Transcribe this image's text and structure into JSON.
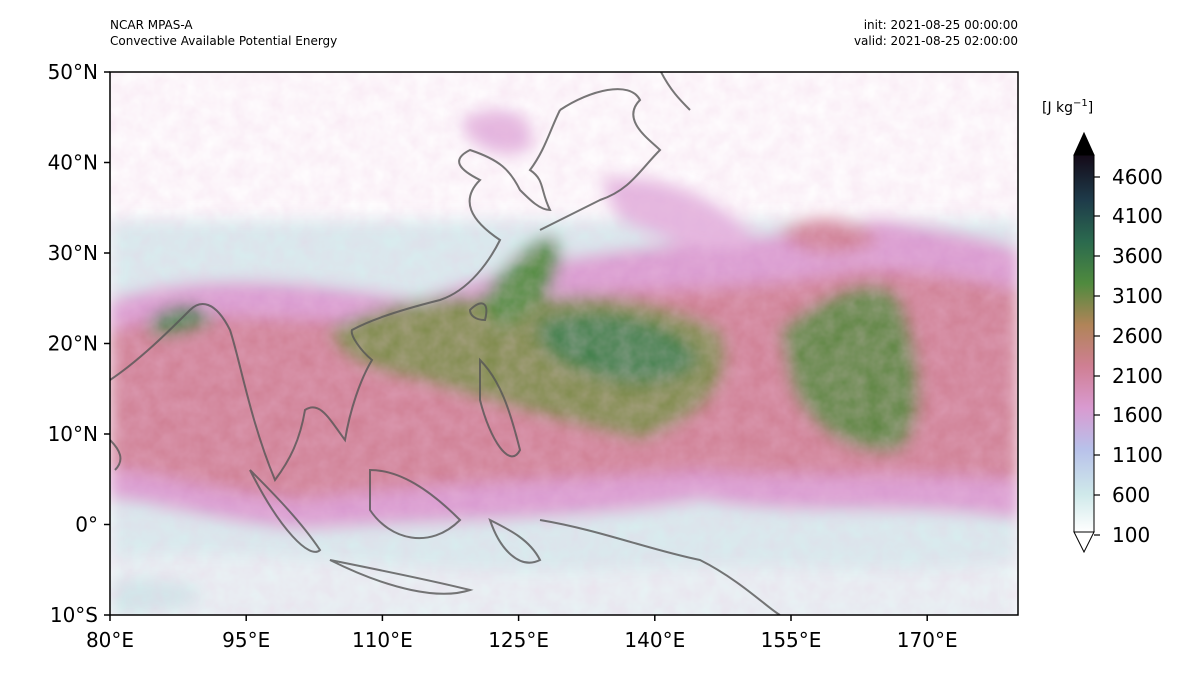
{
  "header": {
    "left_line1": "NCAR MPAS-A",
    "left_line2": "Convective Available Potential Energy",
    "right_line1": "init: 2021-08-25 00:00:00",
    "right_line2": "valid: 2021-08-25 02:00:00"
  },
  "map": {
    "projection": "plate-carree",
    "lon_range": [
      80,
      180
    ],
    "lat_range": [
      -10,
      50
    ],
    "lat_ticks": [
      "50°N",
      "40°N",
      "30°N",
      "20°N",
      "10°N",
      "0°",
      "10°S"
    ],
    "lon_ticks": [
      "80°E",
      "95°E",
      "110°E",
      "125°E",
      "140°E",
      "155°E",
      "170°E"
    ],
    "field": "Convective Available Potential Energy",
    "coastline_color": "#555555"
  },
  "colorbar": {
    "units_prefix": "[J kg",
    "units_exponent": "−1",
    "units_suffix": "]",
    "tick_labels": [
      "4600",
      "4100",
      "3600",
      "3100",
      "2600",
      "2100",
      "1600",
      "1100",
      "600",
      "100"
    ],
    "extend": "both",
    "colormap": "cubehelix-like",
    "colors": [
      "#ffffff",
      "#cfe9ea",
      "#b8c1ea",
      "#d99ad0",
      "#cf7f93",
      "#b08458",
      "#4f8a3e",
      "#2b6a4e",
      "#1e3b4a",
      "#140a18",
      "#000000"
    ]
  }
}
